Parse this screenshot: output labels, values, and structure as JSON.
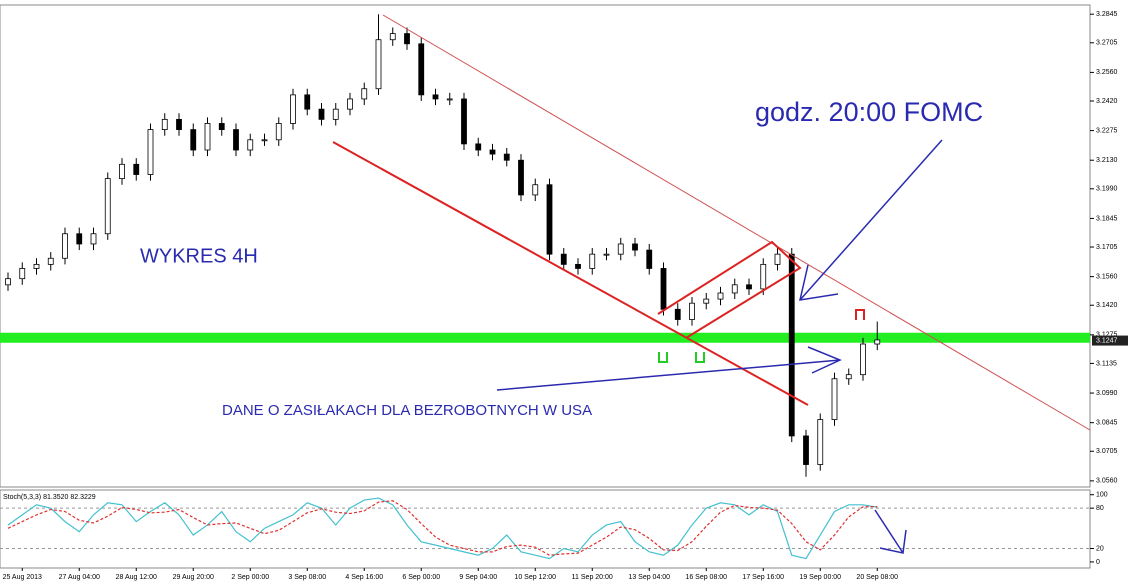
{
  "chart_data": [
    {
      "type": "candlestick",
      "annotations": [
        "WYKRES 4H",
        "godz. 20:00 FOMC",
        "DANE O ZASIŁAKACH DLA BEZROBOTNYCH W USA"
      ],
      "categories": [
        null,
        "25 Aug 2013",
        null,
        null,
        null,
        "27 Aug 04:00",
        null,
        null,
        null,
        "28 Aug 12:00",
        null,
        null,
        null,
        "29 Aug 20:00",
        null,
        null,
        null,
        "2 Sep 00:00",
        null,
        null,
        null,
        "3 Sep 08:00",
        null,
        null,
        null,
        "4 Sep 16:00",
        null,
        null,
        null,
        "6 Sep 00:00",
        null,
        null,
        null,
        "9 Sep 04:00",
        null,
        null,
        null,
        "10 Sep 12:00",
        null,
        null,
        null,
        "11 Sep 20:00",
        null,
        null,
        null,
        "13 Sep 04:00",
        null,
        null,
        null,
        "16 Sep 08:00",
        null,
        null,
        null,
        "17 Sep 16:00",
        null,
        null,
        null,
        "19 Sep 00:00",
        null,
        null,
        null,
        "20 Sep 08:00"
      ],
      "open": [
        3.152,
        3.155,
        3.16,
        3.162,
        3.165,
        3.177,
        3.172,
        3.177,
        3.204,
        3.211,
        3.206,
        3.228,
        3.233,
        3.228,
        3.218,
        3.231,
        3.228,
        3.218,
        3.223,
        3.223,
        3.231,
        3.245,
        3.238,
        3.233,
        3.238,
        3.243,
        3.248,
        3.272,
        3.275,
        3.27,
        3.245,
        3.243,
        3.243,
        3.221,
        3.218,
        3.216,
        3.213,
        3.196,
        3.201,
        3.167,
        3.162,
        3.16,
        3.167,
        3.167,
        3.172,
        3.169,
        3.16,
        3.14,
        3.135,
        3.143,
        3.145,
        3.148,
        3.152,
        3.15,
        3.162,
        3.167,
        3.078,
        3.064,
        3.086,
        3.106,
        3.108,
        3.123
      ],
      "high": [
        3.158,
        3.163,
        3.165,
        3.168,
        3.18,
        3.18,
        3.18,
        3.207,
        3.214,
        3.214,
        3.231,
        3.236,
        3.236,
        3.231,
        3.234,
        3.234,
        3.231,
        3.226,
        3.226,
        3.234,
        3.248,
        3.248,
        3.241,
        3.241,
        3.246,
        3.251,
        3.2845,
        3.278,
        3.278,
        3.273,
        3.248,
        3.246,
        3.246,
        3.224,
        3.221,
        3.219,
        3.216,
        3.204,
        3.204,
        3.17,
        3.165,
        3.17,
        3.17,
        3.175,
        3.175,
        3.172,
        3.163,
        3.143,
        3.146,
        3.148,
        3.151,
        3.155,
        3.155,
        3.165,
        3.17,
        3.17,
        3.081,
        3.089,
        3.109,
        3.111,
        3.126,
        3.134
      ],
      "low": [
        3.149,
        3.152,
        3.157,
        3.159,
        3.162,
        3.169,
        3.169,
        3.174,
        3.201,
        3.203,
        3.203,
        3.225,
        3.225,
        3.215,
        3.215,
        3.225,
        3.215,
        3.215,
        3.22,
        3.22,
        3.228,
        3.235,
        3.23,
        3.23,
        3.235,
        3.24,
        3.245,
        3.269,
        3.267,
        3.242,
        3.24,
        3.24,
        3.218,
        3.215,
        3.213,
        3.21,
        3.193,
        3.193,
        3.164,
        3.159,
        3.157,
        3.157,
        3.164,
        3.164,
        3.166,
        3.157,
        3.137,
        3.132,
        3.132,
        3.14,
        3.142,
        3.145,
        3.147,
        3.147,
        3.159,
        3.075,
        3.058,
        3.061,
        3.083,
        3.103,
        3.105,
        3.12
      ],
      "close": [
        3.155,
        3.16,
        3.162,
        3.165,
        3.177,
        3.172,
        3.177,
        3.204,
        3.211,
        3.206,
        3.228,
        3.233,
        3.228,
        3.218,
        3.231,
        3.228,
        3.218,
        3.223,
        3.223,
        3.231,
        3.245,
        3.238,
        3.233,
        3.238,
        3.243,
        3.248,
        3.272,
        3.275,
        3.27,
        3.245,
        3.243,
        3.243,
        3.221,
        3.218,
        3.216,
        3.213,
        3.196,
        3.201,
        3.167,
        3.162,
        3.16,
        3.167,
        3.167,
        3.172,
        3.169,
        3.16,
        3.14,
        3.135,
        3.143,
        3.145,
        3.148,
        3.152,
        3.15,
        3.162,
        3.167,
        3.078,
        3.064,
        3.086,
        3.106,
        3.108,
        3.123,
        3.125
      ],
      "up_color": "#ffffff",
      "down_color": "#000000",
      "hlines": [
        {
          "value": 3.1261,
          "color": "#22ee22"
        }
      ],
      "last_price": 3.1247,
      "ylim": [
        3.053,
        3.289
      ],
      "yticks": [
        3.2845,
        3.2705,
        {
          "value": 3.256,
          "label": "3.2560"
        },
        {
          "value": 3.242,
          "label": "3.2420"
        },
        3.2275,
        {
          "value": 3.213,
          "label": "3.2130"
        },
        {
          "value": 3.199,
          "label": "3.1990"
        },
        3.1845,
        3.1705,
        {
          "value": 3.156,
          "label": "3.1560"
        },
        {
          "value": 3.142,
          "label": "3.1420"
        },
        3.1275,
        3.1135,
        {
          "value": 3.099,
          "label": "3.0990"
        },
        3.0845,
        3.0705,
        {
          "value": 3.056,
          "label": "3.0560"
        }
      ]
    },
    {
      "type": "line",
      "title": "Stoch(5,3,3)",
      "series": [
        {
          "color": "#44c0d0",
          "dash": false,
          "last_label": "81.3520",
          "values": [
            55,
            70,
            85,
            80,
            60,
            45,
            70,
            88,
            85,
            60,
            75,
            88,
            70,
            40,
            55,
            75,
            45,
            30,
            50,
            60,
            70,
            88,
            80,
            55,
            80,
            92,
            95,
            85,
            55,
            30,
            25,
            20,
            15,
            10,
            20,
            40,
            15,
            10,
            5,
            20,
            15,
            40,
            55,
            60,
            30,
            15,
            10,
            25,
            55,
            80,
            88,
            85,
            70,
            85,
            75,
            10,
            5,
            40,
            75,
            85,
            85,
            81.352
          ]
        },
        {
          "color": "#e03030",
          "dash": true,
          "last_label": "82.3229",
          "values": [
            50,
            60,
            70,
            78,
            75,
            62,
            58,
            68,
            81,
            78,
            73,
            74,
            78,
            66,
            55,
            57,
            58,
            50,
            42,
            47,
            60,
            73,
            79,
            74,
            72,
            76,
            89,
            91,
            78,
            57,
            37,
            25,
            20,
            15,
            15,
            23,
            25,
            22,
            10,
            12,
            13,
            25,
            37,
            52,
            48,
            35,
            18,
            17,
            30,
            53,
            74,
            84,
            81,
            80,
            77,
            57,
            30,
            18,
            40,
            67,
            82,
            82.3229
          ]
        }
      ],
      "levels": [
        80,
        20
      ],
      "ylim": [
        -9,
        107
      ],
      "yticks": [
        100,
        80,
        20,
        0
      ]
    }
  ]
}
